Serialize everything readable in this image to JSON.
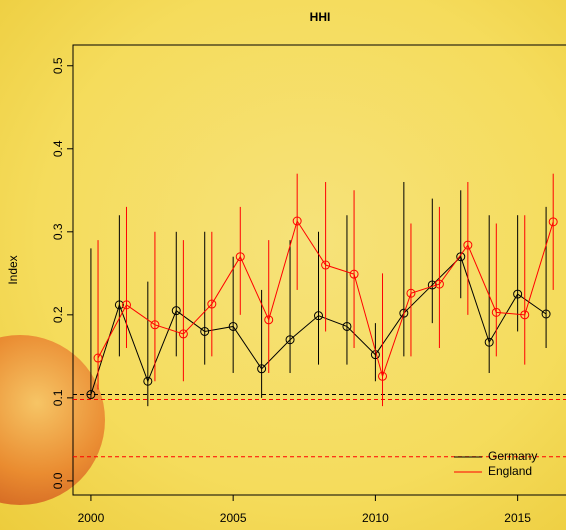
{
  "chart_data": {
    "type": "line",
    "title": "HHI",
    "y_label": "Index",
    "x": [
      2000,
      2001,
      2002,
      2003,
      2004,
      2005,
      2006,
      2007,
      2008,
      2009,
      2010,
      2011,
      2012,
      2013,
      2014,
      2015,
      2016
    ],
    "series": [
      {
        "name": "Germany",
        "color": "#000000",
        "x_offset": 0,
        "values": [
          0.104,
          0.212,
          0.12,
          0.205,
          0.18,
          0.186,
          0.135,
          0.17,
          0.199,
          0.186,
          0.152,
          0.202,
          0.236,
          0.27,
          0.167,
          0.225,
          0.201
        ],
        "lower": [
          0.1,
          0.15,
          0.09,
          0.15,
          0.14,
          0.13,
          0.1,
          0.13,
          0.14,
          0.14,
          0.12,
          0.15,
          0.19,
          0.22,
          0.13,
          0.18,
          0.16
        ],
        "upper": [
          0.28,
          0.32,
          0.24,
          0.3,
          0.3,
          0.27,
          0.23,
          0.29,
          0.3,
          0.32,
          0.19,
          0.36,
          0.34,
          0.35,
          0.32,
          0.32,
          0.33
        ]
      },
      {
        "name": "England",
        "color": "#ff0000",
        "x_offset": 0.25,
        "values": [
          0.148,
          0.212,
          0.188,
          0.177,
          0.213,
          0.27,
          0.194,
          0.313,
          0.26,
          0.249,
          0.126,
          0.226,
          0.237,
          0.284,
          0.203,
          0.2,
          0.312
        ],
        "lower": [
          0.11,
          0.16,
          0.12,
          0.12,
          0.15,
          0.2,
          0.13,
          0.23,
          0.18,
          0.16,
          0.09,
          0.15,
          0.16,
          0.2,
          0.15,
          0.14,
          0.23
        ],
        "upper": [
          0.29,
          0.33,
          0.3,
          0.29,
          0.3,
          0.33,
          0.29,
          0.37,
          0.36,
          0.35,
          0.25,
          0.31,
          0.33,
          0.36,
          0.31,
          0.32,
          0.37
        ]
      }
    ],
    "hlines": [
      {
        "value": 0.104,
        "color": "#000000"
      },
      {
        "value": 0.098,
        "color": "#ff0000"
      },
      {
        "value": 0.029,
        "color": "#ff0000"
      }
    ],
    "xlim": [
      1999.37,
      2016.7
    ],
    "xticks": [
      2000,
      2005,
      2010,
      2015
    ],
    "ylim": [
      -0.017,
      0.525
    ],
    "yticks": [
      {
        "value": 0,
        "label": "0.0"
      },
      0.1,
      0.2,
      0.3,
      0.4,
      0.5
    ],
    "legend": "bottom-right"
  }
}
